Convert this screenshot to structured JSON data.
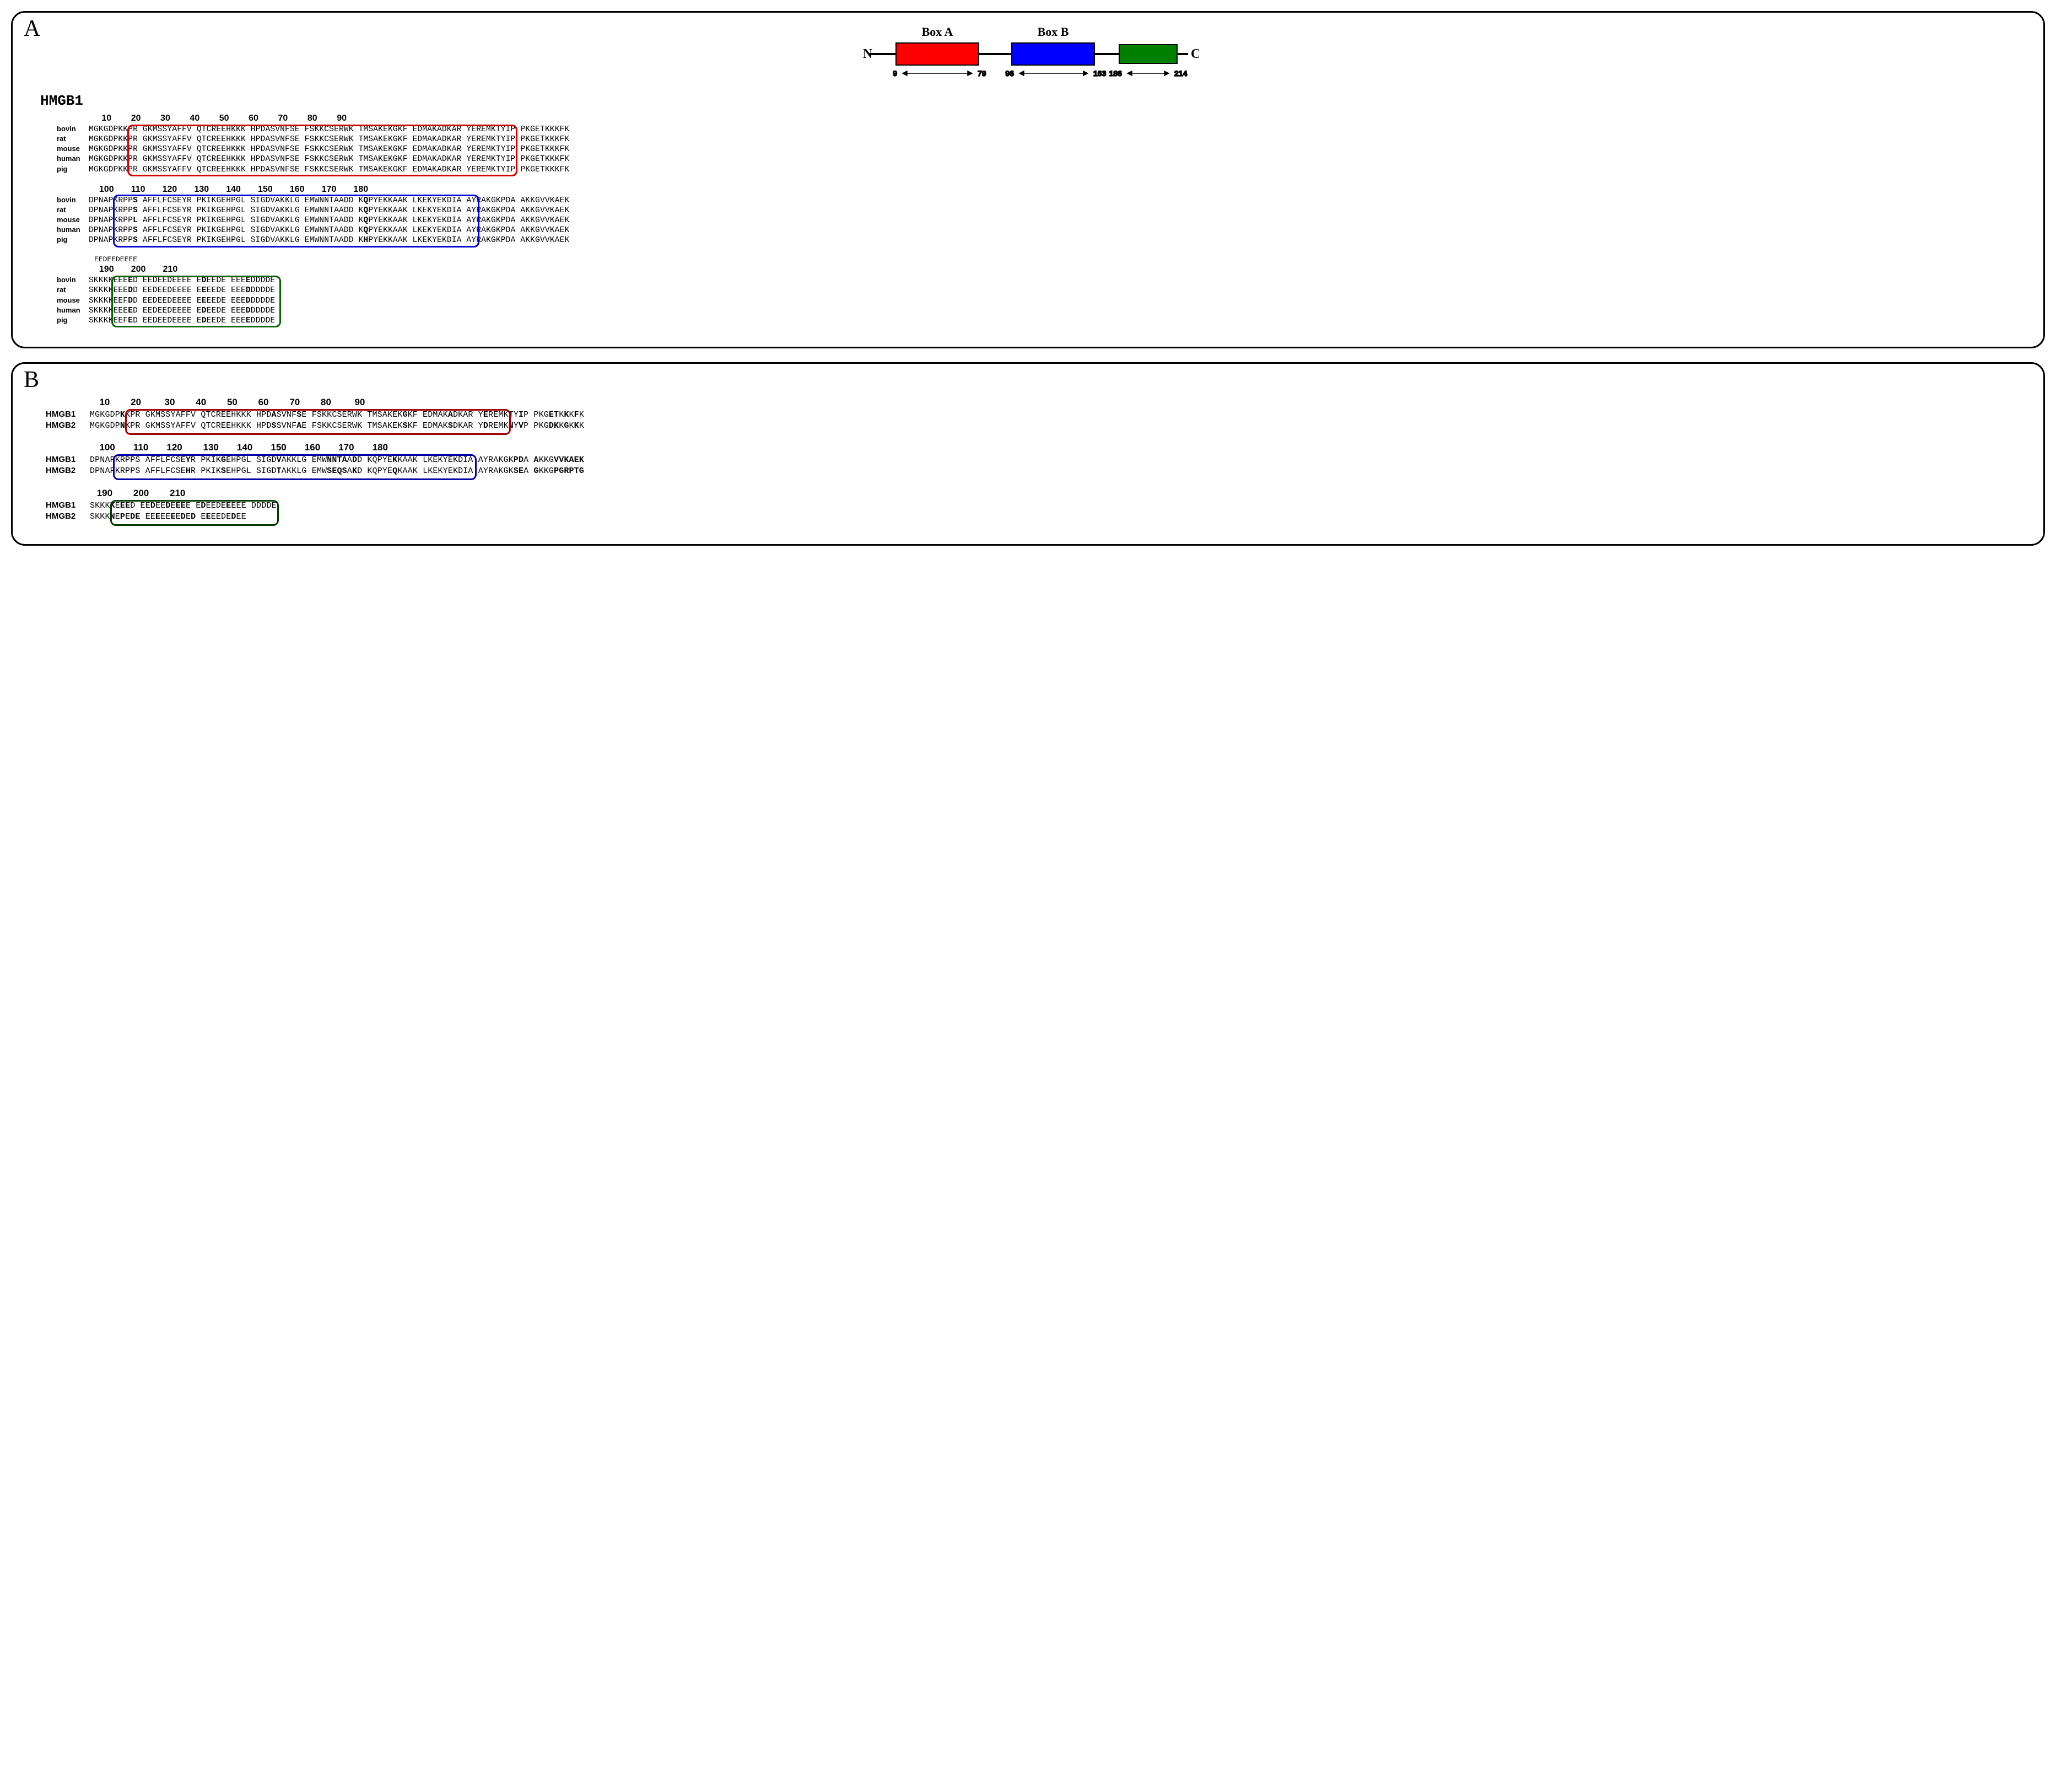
{
  "panelA": {
    "label": "A",
    "diagram": {
      "boxA_label": "Box A",
      "boxB_label": "Box B",
      "N_label": "N",
      "C_label": "C",
      "boxA_start": "9",
      "boxA_end": "79",
      "boxB_start": "96",
      "boxB_end": "163",
      "boxC_start": "186",
      "boxC_end": "214",
      "boxA_color": "#ff0000",
      "boxB_color": "#0000ff",
      "boxC_color": "#008000"
    },
    "title": "HMGB1",
    "species": [
      "bovin",
      "rat",
      "mouse",
      "human",
      "pig"
    ],
    "ruler1": "   10        20        30        40        50        60        70        80        90",
    "block1": [
      "MGKGDPKKPR GKMSSYAFFV QTCREEHKKK HPDASVNFSE FSKKCSERWK TMSAKEKGKF EDMAKADKAR YEREMKTYIP PKGETKKKFK",
      "MGKGDPKKPR GKMSSYAFFV QTCREEHKKK HPDASVNFSE FSKKCSERWK TMSAKEKGKF EDMAKADKAR YEREMKTYIP PKGETKKKFK",
      "MGKGDPKKPR GKMSSYAFFV QTCREEHKKK HPDASVNFSE FSKKCSERWK TMSAKEKGKF EDMAKADKAR YEREMKTYIP PKGETKKKFK",
      "MGKGDPKKPR GKMSSYAFFV QTCREEHKKK HPDASVNFSE FSKKCSERWK TMSAKEKGKF EDMAKADKAR YEREMKTYIP PKGETKKKFK",
      "MGKGDPKKPR GKMSSYAFFV QTCREEHKKK HPDASVNFSE FSKKCSERWK TMSAKEKGKF EDMAKADKAR YEREMKTYIP PKGETKKKFK"
    ],
    "ruler2": "  100       110       120       130       140       150       160       170       180",
    "block2": [
      {
        "pre": "DPNAPKRPP",
        "v": "S",
        "post": " AFFLFCSEYR PKIKGEHPGL SIGDVAKKLG EMWNNTAADD K",
        "v2": "Q",
        "post2": "PYEKKAAK LKEKYEKDIA AYRAKGKPDA AKKGVVKAEK"
      },
      {
        "pre": "DPNAPKRPP",
        "v": "S",
        "post": " AFFLFCSEYR PKIKGEHPGL SIGDVAKKLG EMWNNTAADD K",
        "v2": "Q",
        "post2": "PYEKKAAK LKEKYEKDIA AYRAKGKPDA AKKGVVKAEK"
      },
      {
        "pre": "DPNAPKRPP",
        "v": "L",
        "post": " AFFLFCSEYR PKIKGEHPGL SIGDVAKKLG EMWNNTAADD K",
        "v2": "Q",
        "post2": "PYEKKAAK LKEKYEKDIA AYRAKGKPDA AKKGVVKAEK"
      },
      {
        "pre": "DPNAPKRPP",
        "v": "S",
        "post": " AFFLFCSEYR PKIKGEHPGL SIGDVAKKLG EMWNNTAADD K",
        "v2": "Q",
        "post2": "PYEKKAAK LKEKYEKDIA AYRAKGKPDA AKKGVVKAEK"
      },
      {
        "pre": "DPNAPKRPP",
        "v": "S",
        "post": " AFFLFCSEYR PKIKGEHPGL SIGDVAKKLG EMWNNTAADD K",
        "v2": "H",
        "post2": "PYEKKAAK LKEKYEKDIA AYRAKGKPDA AKKGVVKAEK"
      }
    ],
    "extra_seq": "EEDEEDEEEE",
    "ruler3": "  190       200       210",
    "block3": [
      {
        "p1": "SKKKKEEE",
        "v1": "E",
        "p2": "D EEDEEDEEEE E",
        "v2": "D",
        "p3": "EEDE EEE",
        "v3": "E",
        "p4": "DDDDE"
      },
      {
        "p1": "SKKKKEEE",
        "v1": "D",
        "p2": "D EEDEEDEEEE E",
        "v2": "E",
        "p3": "EEDE EEE",
        "v3": "D",
        "p4": "DDDDE"
      },
      {
        "p1": "SKKKKEEF",
        "v1": "D",
        "p2": "D EEDEEDEEEE E",
        "v2": "E",
        "p3": "EEDE EEE",
        "v3": "D",
        "p4": "DDDDE"
      },
      {
        "p1": "SKKKKEEE",
        "v1": "E",
        "p2": "D EEDEEDEEEE E",
        "v2": "D",
        "p3": "EEDE EEE",
        "v3": "D",
        "p4": "DDDDE"
      },
      {
        "p1": "SKKKKEEF",
        "v1": "E",
        "p2": "D EEDEEDEEEE E",
        "v2": "D",
        "p3": "EEDE EEE",
        "v3": "E",
        "p4": "DDDDE"
      }
    ],
    "box_colors": {
      "red": "#d40000",
      "blue": "#0000d4",
      "green": "#006400"
    }
  },
  "panelB": {
    "label": "B",
    "names": [
      "HMGB1",
      "HMGB2"
    ],
    "ruler1": "  10        20         30        40        50        60        70        80         90",
    "block1": [
      {
        "segs": [
          "MGKGDP",
          "<b>K</b>",
          "KPR GKMSSYAFFV QTCREEHKKK HPD",
          "<b>A</b>",
          "SVNF",
          "<b>S</b>",
          "E FSKKCSERWK TMSAKEK",
          "<b>G</b>",
          "KF EDMAK",
          "<b>A</b>",
          "DKAR Y",
          "<b>E</b>",
          "REMK",
          "<b>T</b>",
          "Y",
          "<b>I</b>",
          "P PKG",
          "<b>ET</b>",
          "K",
          "<b>K</b>",
          "K",
          "<b>F</b>",
          "K"
        ]
      },
      {
        "segs": [
          "MGKGDP",
          "<b>N</b>",
          "KPR GKMSSYAFFV QTCREEHKKK HPD",
          "<b>S</b>",
          "SVNF",
          "<b>A</b>",
          "E FSKKCSERWK TMSAKEK",
          "<b>S</b>",
          "KF EDMAK",
          "<b>S</b>",
          "DKAR Y",
          "<b>D</b>",
          "REMK",
          "<b>N</b>",
          "Y",
          "<b>V</b>",
          "P PKG",
          "<b>DK</b>",
          "K",
          "<b>G</b>",
          "K",
          "<b>K</b>",
          "K"
        ]
      }
    ],
    "ruler2": "  100       110       120        130       140       150       160       170       180",
    "block2": [
      {
        "segs": [
          "DPNAPKRPPS AFFLFCSE",
          "<b>Y</b>",
          "R PKIK",
          "<b>G</b>",
          "EHPGL SIGD",
          "<b>V</b>",
          "AKKLG EMW",
          "<b>NNTA</b>",
          "A",
          "<b>D</b>",
          "D KQPYE",
          "<b>K</b>",
          "KAAK LKEKYEKDIA AYRAKGK",
          "<b>PD</b>",
          "A ",
          "<b>A</b>",
          "KKG",
          "<b>VVKAEK</b>"
        ]
      },
      {
        "segs": [
          "DPNAPKRPPS AFFLFCSE",
          "<b>H</b>",
          "R PKIK",
          "<b>S</b>",
          "EHPGL SIGD",
          "<b>T</b>",
          "AKKLG EMW",
          "<b>SEQS</b>",
          "A",
          "<b>K</b>",
          "D KQPYE",
          "<b>Q</b>",
          "KAAK LKEKYEKDIA AYRAKGK",
          "<b>SE</b>",
          "A ",
          "<b>G</b>",
          "KKG",
          "<b>PGRPTG</b>"
        ]
      }
    ],
    "ruler3": " 190        200        210",
    "block3": [
      {
        "segs": [
          "SKKK",
          "<b>K</b>",
          "E",
          "<b>EE</b>",
          "D EE",
          "<b>D</b>",
          "EE",
          "<b>D</b>",
          "E",
          "<b>EE</b>",
          "E E",
          "<b>D</b>",
          "EEDE",
          "<b>E</b>",
          "EEE DDDDE"
        ]
      },
      {
        "segs": [
          "SKKK",
          "<b>N</b>",
          "E",
          "<b>P</b>",
          "E",
          "<b>DE</b>",
          " EE",
          "<b>E</b>",
          "EE",
          "<b>E</b>",
          "E",
          "<b>D</b>",
          "E",
          "<b>D</b>",
          " E",
          "<b>E</b>",
          "EEDE",
          "<b>D</b>",
          "EE"
        ]
      }
    ],
    "box_colors": {
      "red": "#a00000",
      "blue": "#0000a8",
      "green": "#003c00"
    }
  }
}
